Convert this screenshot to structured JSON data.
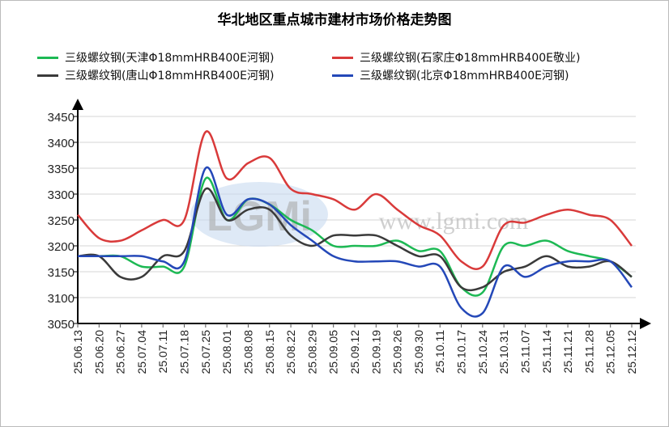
{
  "chart_data": {
    "type": "line",
    "title": "华北地区重点城市建材市场价格走势图",
    "xlabel": "",
    "ylabel": "",
    "ylim": [
      3050,
      3450
    ],
    "yticks": [
      3050,
      3100,
      3150,
      3200,
      3250,
      3300,
      3350,
      3400,
      3450
    ],
    "grid": true,
    "legend_position": "top",
    "watermark": "www.lgmi.com",
    "categories": [
      "25.06.13",
      "25.06.20",
      "25.06.27",
      "25.07.04",
      "25.07.11",
      "25.07.18",
      "25.07.25",
      "25.08.01",
      "25.08.08",
      "25.08.15",
      "25.08.22",
      "25.08.29",
      "25.09.05",
      "25.09.12",
      "25.09.19",
      "25.09.26",
      "25.09.30",
      "25.10.11",
      "25.10.17",
      "25.10.24",
      "25.10.31",
      "25.11.07",
      "25.11.14",
      "25.11.21",
      "25.11.28",
      "25.12.05",
      "25.12.12"
    ],
    "series": [
      {
        "name": "三级螺纹钢(天津Φ18mmHRB400E河钢)",
        "color": "#1db954",
        "values": [
          3180,
          3180,
          3180,
          3160,
          3160,
          3160,
          3330,
          3250,
          3290,
          3280,
          3250,
          3230,
          3200,
          3200,
          3200,
          3210,
          3190,
          3190,
          3120,
          3110,
          3200,
          3200,
          3210,
          3190,
          3180,
          3170,
          3140
        ]
      },
      {
        "name": "三级螺纹钢(石家庄Φ18mmHRB400E敬业)",
        "color": "#d93a3a",
        "values": [
          3260,
          3215,
          3210,
          3230,
          3250,
          3250,
          3420,
          3330,
          3360,
          3370,
          3310,
          3300,
          3290,
          3270,
          3300,
          3270,
          3240,
          3220,
          3170,
          3160,
          3240,
          3245,
          3260,
          3270,
          3260,
          3250,
          3200
        ]
      },
      {
        "name": "三级螺纹钢(唐山Φ18mmHRB400E河钢)",
        "color": "#3a3a3a",
        "values": [
          3180,
          3180,
          3140,
          3140,
          3180,
          3190,
          3310,
          3250,
          3270,
          3270,
          3220,
          3200,
          3220,
          3220,
          3220,
          3200,
          3180,
          3180,
          3120,
          3120,
          3150,
          3160,
          3180,
          3160,
          3160,
          3170,
          3140
        ]
      },
      {
        "name": "三级螺纹钢(北京Φ18mmHRB400E河钢)",
        "color": "#2448b8",
        "values": [
          3180,
          3180,
          3180,
          3180,
          3170,
          3170,
          3350,
          3260,
          3290,
          3280,
          3240,
          3210,
          3180,
          3170,
          3170,
          3170,
          3160,
          3160,
          3080,
          3070,
          3160,
          3140,
          3160,
          3170,
          3170,
          3170,
          3120
        ]
      }
    ]
  }
}
